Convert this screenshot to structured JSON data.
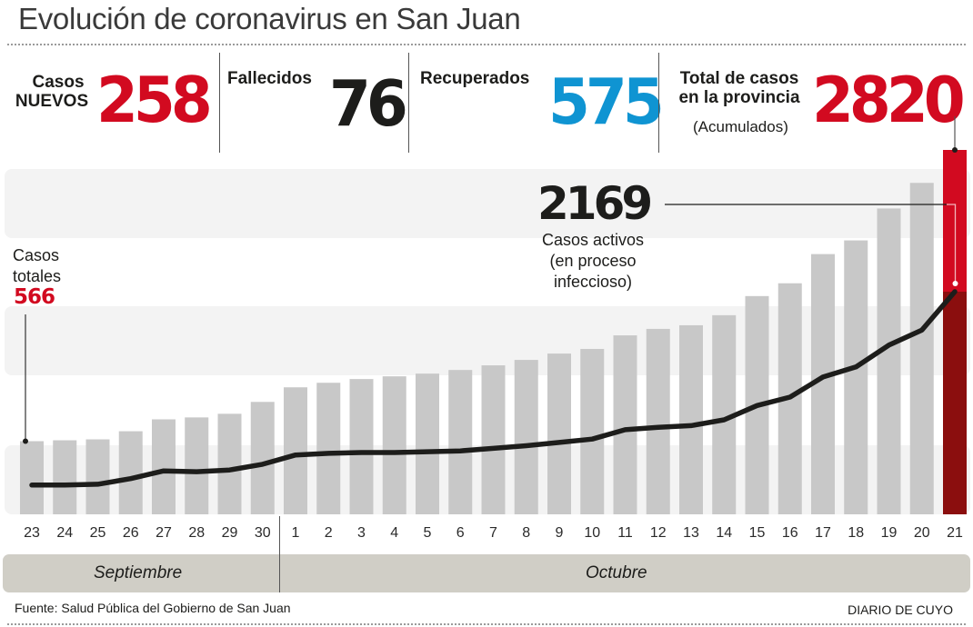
{
  "header": {
    "title": "Evolución de coronavirus en San Juan"
  },
  "kpis": {
    "new_cases": {
      "label_line1": "Casos",
      "label_line2": "NUEVOS",
      "value": "258",
      "color": "#d20a20"
    },
    "deaths": {
      "label": "Fallecidos",
      "value": "76",
      "color": "#1d1d1b"
    },
    "recovered": {
      "label": "Recuperados",
      "value": "575",
      "color": "#0f94d2"
    },
    "total": {
      "label_line1": "Total de casos",
      "label_line2": "en la provincia",
      "sublabel": "(Acumulados)",
      "value": "2820",
      "color": "#d20a20"
    }
  },
  "annotations": {
    "start_label_line1": "Casos",
    "start_label_line2": "totales",
    "start_value": "566",
    "active_value": "2169",
    "active_label_line1": "Casos activos",
    "active_label_line2": "(en proceso",
    "active_label_line3": "infeccioso)"
  },
  "months": {
    "september": "Septiembre",
    "october": "Octubre"
  },
  "footer": {
    "source": "Fuente: Salud Pública del Gobierno de San Juan",
    "brand": "DIARIO DE CUYO"
  },
  "colors": {
    "bar": "#c8c8c8",
    "highlight_bar": "#d20a20",
    "highlight_bar_active": "#8b0e0e",
    "line": "#1d1d1b",
    "band": "#f3f3f3"
  },
  "chart_data": {
    "type": "bar",
    "title": "Evolución de coronavirus en San Juan",
    "xlabel": "",
    "ylabel": "",
    "categories": [
      "23",
      "24",
      "25",
      "26",
      "27",
      "28",
      "29",
      "30",
      "1",
      "2",
      "3",
      "4",
      "5",
      "6",
      "7",
      "8",
      "9",
      "10",
      "11",
      "12",
      "13",
      "14",
      "15",
      "16",
      "17",
      "18",
      "19",
      "20",
      "21"
    ],
    "series": [
      {
        "name": "Casos totales",
        "type": "bar",
        "values": [
          566,
          573,
          580,
          643,
          735,
          750,
          778,
          870,
          983,
          1018,
          1047,
          1068,
          1089,
          1117,
          1153,
          1195,
          1244,
          1280,
          1385,
          1435,
          1463,
          1541,
          1689,
          1788,
          2014,
          2120,
          2367,
          2565,
          2820
        ]
      },
      {
        "name": "Casos activos",
        "type": "line",
        "values": [
          285,
          285,
          293,
          348,
          423,
          415,
          432,
          488,
          578,
          594,
          602,
          602,
          610,
          618,
          643,
          668,
          700,
          733,
          824,
          848,
          864,
          921,
          1060,
          1142,
          1338,
          1436,
          1648,
          1795,
          2169
        ]
      }
    ],
    "ylim": [
      0,
      2820
    ],
    "grid": false,
    "legend": "none"
  }
}
